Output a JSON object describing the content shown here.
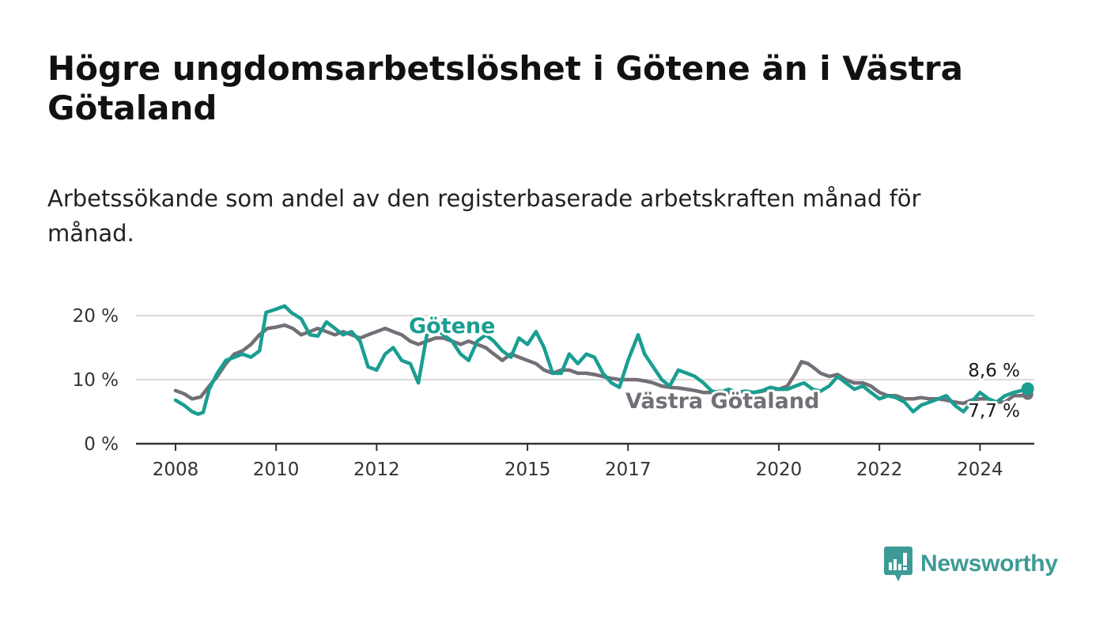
{
  "title": "Högre ungdomsarbetslöshet i Götene än i Västra Götaland",
  "subtitle": "Arbetssökande som andel av den registerbaserade arbetskraften månad för månad.",
  "brand": {
    "name": "Newsworthy",
    "icon": "newsworthy-logo-icon"
  },
  "colors": {
    "gotene": "#1a9e91",
    "vg": "#736f76",
    "grid": "#d9d9d9",
    "axis": "#333333"
  },
  "chart_data": {
    "type": "line",
    "title": "Högre ungdomsarbetslöshet i Götene än i Västra Götaland",
    "subtitle": "Arbetssökande som andel av den registerbaserade arbetskraften månad för månad.",
    "xlabel": "",
    "ylabel": "",
    "ylim": [
      0,
      22
    ],
    "grid": true,
    "y_ticks": [
      0,
      10,
      20
    ],
    "y_tick_labels": [
      "0 %",
      "10 %",
      "20 %"
    ],
    "x_ticks": [
      2008,
      2010,
      2012,
      2015,
      2017,
      2020,
      2022,
      2024
    ],
    "x_tick_labels": [
      "2008",
      "2010",
      "2012",
      "2015",
      "2017",
      "2020",
      "2022",
      "2024"
    ],
    "series": [
      {
        "name": "Götene",
        "color": "#1a9e91",
        "end_label": "8,6 %",
        "points": [
          [
            2008.0,
            6.8
          ],
          [
            2008.17,
            6.0
          ],
          [
            2008.33,
            5.0
          ],
          [
            2008.45,
            4.6
          ],
          [
            2008.55,
            4.9
          ],
          [
            2008.67,
            8.5
          ],
          [
            2008.83,
            11.0
          ],
          [
            2009.0,
            13.0
          ],
          [
            2009.17,
            13.5
          ],
          [
            2009.33,
            14.0
          ],
          [
            2009.5,
            13.5
          ],
          [
            2009.67,
            14.5
          ],
          [
            2009.8,
            20.5
          ],
          [
            2010.0,
            21.0
          ],
          [
            2010.17,
            21.5
          ],
          [
            2010.3,
            20.5
          ],
          [
            2010.5,
            19.5
          ],
          [
            2010.67,
            17.0
          ],
          [
            2010.83,
            16.8
          ],
          [
            2011.0,
            19.0
          ],
          [
            2011.17,
            18.0
          ],
          [
            2011.33,
            17.0
          ],
          [
            2011.5,
            17.5
          ],
          [
            2011.67,
            16.0
          ],
          [
            2011.83,
            12.0
          ],
          [
            2012.0,
            11.5
          ],
          [
            2012.17,
            14.0
          ],
          [
            2012.33,
            15.0
          ],
          [
            2012.5,
            13.0
          ],
          [
            2012.67,
            12.5
          ],
          [
            2012.83,
            9.5
          ],
          [
            2013.0,
            17.0
          ],
          [
            2013.17,
            18.0
          ],
          [
            2013.33,
            17.0
          ],
          [
            2013.5,
            16.0
          ],
          [
            2013.67,
            14.0
          ],
          [
            2013.83,
            13.0
          ],
          [
            2014.0,
            16.0
          ],
          [
            2014.17,
            17.0
          ],
          [
            2014.33,
            16.0
          ],
          [
            2014.5,
            14.5
          ],
          [
            2014.67,
            13.5
          ],
          [
            2014.83,
            16.5
          ],
          [
            2015.0,
            15.5
          ],
          [
            2015.17,
            17.5
          ],
          [
            2015.33,
            15.0
          ],
          [
            2015.5,
            11.0
          ],
          [
            2015.67,
            11.0
          ],
          [
            2015.83,
            14.0
          ],
          [
            2016.0,
            12.5
          ],
          [
            2016.17,
            14.0
          ],
          [
            2016.33,
            13.5
          ],
          [
            2016.5,
            11.0
          ],
          [
            2016.67,
            9.5
          ],
          [
            2016.83,
            8.8
          ],
          [
            2017.0,
            13.0
          ],
          [
            2017.2,
            17.0
          ],
          [
            2017.33,
            14.0
          ],
          [
            2017.5,
            12.0
          ],
          [
            2017.67,
            10.0
          ],
          [
            2017.83,
            9.0
          ],
          [
            2018.0,
            11.5
          ],
          [
            2018.17,
            11.0
          ],
          [
            2018.33,
            10.5
          ],
          [
            2018.5,
            9.5
          ],
          [
            2018.67,
            8.2
          ],
          [
            2018.83,
            8.0
          ],
          [
            2019.0,
            8.5
          ],
          [
            2019.17,
            8.0
          ],
          [
            2019.33,
            8.2
          ],
          [
            2019.5,
            8.0
          ],
          [
            2019.67,
            8.3
          ],
          [
            2019.83,
            8.8
          ],
          [
            2020.0,
            8.5
          ],
          [
            2020.17,
            8.5
          ],
          [
            2020.33,
            9.0
          ],
          [
            2020.5,
            9.5
          ],
          [
            2020.67,
            8.5
          ],
          [
            2020.83,
            8.2
          ],
          [
            2021.0,
            9.0
          ],
          [
            2021.17,
            10.5
          ],
          [
            2021.33,
            9.5
          ],
          [
            2021.5,
            8.5
          ],
          [
            2021.67,
            9.0
          ],
          [
            2021.83,
            8.0
          ],
          [
            2022.0,
            7.0
          ],
          [
            2022.17,
            7.5
          ],
          [
            2022.33,
            7.2
          ],
          [
            2022.5,
            6.5
          ],
          [
            2022.67,
            5.0
          ],
          [
            2022.83,
            6.0
          ],
          [
            2023.0,
            6.5
          ],
          [
            2023.17,
            7.0
          ],
          [
            2023.33,
            7.5
          ],
          [
            2023.5,
            6.0
          ],
          [
            2023.67,
            5.0
          ],
          [
            2023.83,
            6.5
          ],
          [
            2024.0,
            8.0
          ],
          [
            2024.17,
            7.0
          ],
          [
            2024.33,
            6.5
          ],
          [
            2024.5,
            7.5
          ],
          [
            2024.67,
            8.0
          ],
          [
            2024.83,
            8.3
          ],
          [
            2024.95,
            8.6
          ]
        ]
      },
      {
        "name": "Västra Götaland",
        "color": "#736f76",
        "end_label": "7,7 %",
        "points": [
          [
            2008.0,
            8.3
          ],
          [
            2008.17,
            7.8
          ],
          [
            2008.33,
            7.0
          ],
          [
            2008.5,
            7.3
          ],
          [
            2008.67,
            9.0
          ],
          [
            2008.83,
            10.5
          ],
          [
            2009.0,
            12.5
          ],
          [
            2009.17,
            14.0
          ],
          [
            2009.33,
            14.5
          ],
          [
            2009.5,
            15.5
          ],
          [
            2009.67,
            17.0
          ],
          [
            2009.83,
            18.0
          ],
          [
            2010.0,
            18.2
          ],
          [
            2010.17,
            18.5
          ],
          [
            2010.33,
            18.0
          ],
          [
            2010.5,
            17.0
          ],
          [
            2010.67,
            17.5
          ],
          [
            2010.83,
            18.0
          ],
          [
            2011.0,
            17.5
          ],
          [
            2011.17,
            17.0
          ],
          [
            2011.33,
            17.5
          ],
          [
            2011.5,
            17.0
          ],
          [
            2011.67,
            16.5
          ],
          [
            2011.83,
            17.0
          ],
          [
            2012.0,
            17.5
          ],
          [
            2012.17,
            18.0
          ],
          [
            2012.33,
            17.5
          ],
          [
            2012.5,
            17.0
          ],
          [
            2012.67,
            16.0
          ],
          [
            2012.83,
            15.5
          ],
          [
            2013.0,
            16.0
          ],
          [
            2013.17,
            16.5
          ],
          [
            2013.33,
            16.5
          ],
          [
            2013.5,
            16.0
          ],
          [
            2013.67,
            15.5
          ],
          [
            2013.83,
            16.0
          ],
          [
            2014.0,
            15.5
          ],
          [
            2014.17,
            15.0
          ],
          [
            2014.33,
            14.0
          ],
          [
            2014.5,
            13.0
          ],
          [
            2014.67,
            14.0
          ],
          [
            2014.83,
            13.5
          ],
          [
            2015.0,
            13.0
          ],
          [
            2015.17,
            12.5
          ],
          [
            2015.33,
            11.5
          ],
          [
            2015.5,
            11.0
          ],
          [
            2015.67,
            11.5
          ],
          [
            2015.83,
            11.5
          ],
          [
            2016.0,
            11.0
          ],
          [
            2016.17,
            11.0
          ],
          [
            2016.33,
            10.8
          ],
          [
            2016.5,
            10.5
          ],
          [
            2016.67,
            10.2
          ],
          [
            2016.83,
            10.0
          ],
          [
            2017.0,
            10.0
          ],
          [
            2017.17,
            10.0
          ],
          [
            2017.33,
            9.8
          ],
          [
            2017.5,
            9.5
          ],
          [
            2017.67,
            9.0
          ],
          [
            2017.83,
            8.8
          ],
          [
            2018.0,
            8.7
          ],
          [
            2018.17,
            8.5
          ],
          [
            2018.33,
            8.3
          ],
          [
            2018.5,
            8.0
          ],
          [
            2018.67,
            8.0
          ],
          [
            2018.83,
            8.2
          ],
          [
            2019.0,
            8.0
          ],
          [
            2019.17,
            8.0
          ],
          [
            2019.33,
            8.2
          ],
          [
            2019.5,
            8.0
          ],
          [
            2019.67,
            8.2
          ],
          [
            2019.83,
            8.5
          ],
          [
            2020.0,
            8.5
          ],
          [
            2020.17,
            9.0
          ],
          [
            2020.33,
            11.0
          ],
          [
            2020.45,
            12.8
          ],
          [
            2020.58,
            12.5
          ],
          [
            2020.67,
            12.0
          ],
          [
            2020.83,
            11.0
          ],
          [
            2021.0,
            10.5
          ],
          [
            2021.17,
            10.8
          ],
          [
            2021.33,
            10.0
          ],
          [
            2021.5,
            9.5
          ],
          [
            2021.67,
            9.5
          ],
          [
            2021.83,
            9.0
          ],
          [
            2022.0,
            8.0
          ],
          [
            2022.17,
            7.5
          ],
          [
            2022.33,
            7.5
          ],
          [
            2022.5,
            7.0
          ],
          [
            2022.67,
            7.0
          ],
          [
            2022.83,
            7.2
          ],
          [
            2023.0,
            7.0
          ],
          [
            2023.17,
            7.0
          ],
          [
            2023.33,
            6.8
          ],
          [
            2023.5,
            6.5
          ],
          [
            2023.67,
            6.3
          ],
          [
            2023.83,
            6.8
          ],
          [
            2024.0,
            7.0
          ],
          [
            2024.17,
            7.0
          ],
          [
            2024.33,
            6.5
          ],
          [
            2024.5,
            6.5
          ],
          [
            2024.67,
            7.5
          ],
          [
            2024.83,
            7.5
          ],
          [
            2024.95,
            7.7
          ]
        ]
      }
    ]
  }
}
